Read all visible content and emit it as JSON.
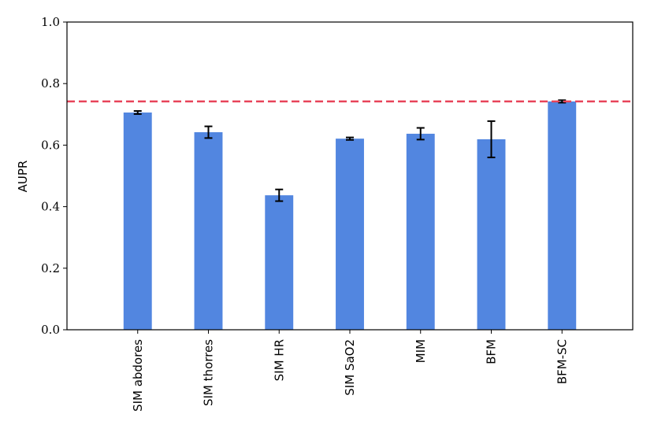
{
  "chart_data": {
    "type": "bar",
    "y_label": "AUPR",
    "categories": [
      "SIM abdores",
      "SIM thorres",
      "SIM HR",
      "SIM SaO2",
      "MIM",
      "BFM",
      "BFM-SC"
    ],
    "values": [
      0.706,
      0.642,
      0.437,
      0.621,
      0.637,
      0.619,
      0.742
    ],
    "errors": [
      0.005,
      0.019,
      0.019,
      0.004,
      0.019,
      0.059,
      0.004
    ],
    "color": "#5286e0",
    "error_color": "#000000",
    "reference_line": {
      "value": 0.742,
      "color": "#e8445a"
    },
    "ylim": [
      0,
      1
    ],
    "yticks": [
      {
        "value": 0,
        "label": "0.0"
      },
      0.2,
      0.4,
      0.6,
      0.8,
      {
        "value": 1,
        "label": "1.0"
      }
    ],
    "grid": false
  }
}
